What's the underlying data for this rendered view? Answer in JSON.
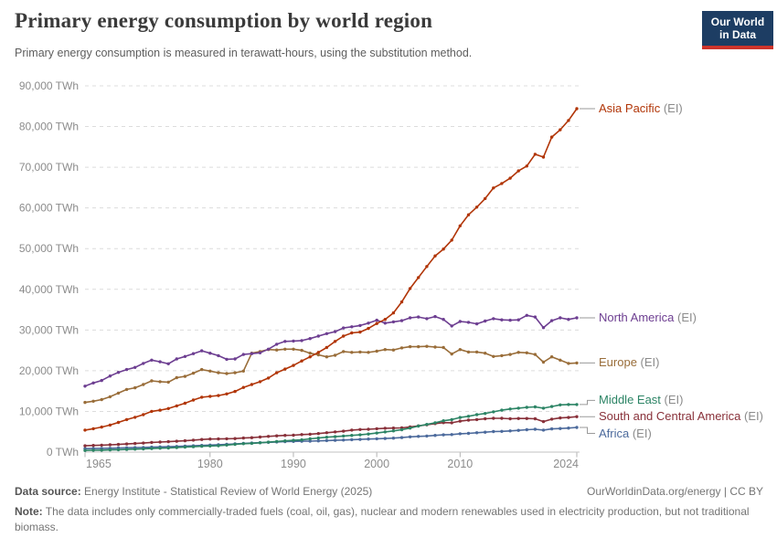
{
  "header": {
    "title": "Primary energy consumption by world region",
    "subtitle": "Primary energy consumption is measured in terawatt-hours, using the substitution method.",
    "logo": {
      "line1": "Our World",
      "line2": "in Data",
      "bg_color": "#1D3D63",
      "stripe_color": "#CE342B"
    }
  },
  "chart_data": {
    "type": "line",
    "title": "Primary energy consumption by world region",
    "unit": "TWh",
    "xlabel": "",
    "ylabel": "",
    "x_start": 1965,
    "x_end": 2024,
    "x_ticks": [
      1965,
      1980,
      1990,
      2000,
      2010,
      2024
    ],
    "ylim": [
      0,
      90000
    ],
    "y_ticks": [
      0,
      10000,
      20000,
      30000,
      40000,
      50000,
      60000,
      70000,
      80000,
      90000
    ],
    "y_tick_labels": [
      "0 TWh",
      "10,000 TWh",
      "20,000 TWh",
      "30,000 TWh",
      "40,000 TWh",
      "50,000 TWh",
      "60,000 TWh",
      "70,000 TWh",
      "80,000 TWh",
      "90,000 TWh"
    ],
    "grid": "horizontal-dashed",
    "legend_position": "right-of-line-ends",
    "series": [
      {
        "name": "Asia Pacific",
        "suffix": " (EI)",
        "color": "#B13507",
        "values": [
          5400,
          5750,
          6150,
          6650,
          7300,
          8000,
          8550,
          9200,
          10000,
          10300,
          10700,
          11350,
          12000,
          12800,
          13500,
          13700,
          13900,
          14300,
          14900,
          15900,
          16600,
          17300,
          18200,
          19500,
          20400,
          21300,
          22400,
          23400,
          24500,
          25700,
          27200,
          28500,
          29300,
          29500,
          30400,
          31600,
          32600,
          34200,
          36900,
          40200,
          42900,
          45600,
          48200,
          49900,
          52100,
          55600,
          58300,
          60200,
          62300,
          64900,
          66000,
          67300,
          69100,
          70300,
          73200,
          72500,
          77400,
          79200,
          81500,
          84400
        ]
      },
      {
        "name": "North America",
        "suffix": " (EI)",
        "color": "#6D3E91",
        "values": [
          16200,
          17000,
          17600,
          18700,
          19600,
          20300,
          20800,
          21800,
          22600,
          22200,
          21700,
          22900,
          23500,
          24200,
          24900,
          24300,
          23700,
          22800,
          22900,
          24000,
          24200,
          24400,
          25300,
          26500,
          27200,
          27300,
          27400,
          27900,
          28500,
          29100,
          29600,
          30500,
          30800,
          31100,
          31700,
          32400,
          31700,
          32000,
          32300,
          33000,
          33200,
          32800,
          33300,
          32600,
          31000,
          32100,
          31900,
          31500,
          32200,
          32800,
          32500,
          32400,
          32500,
          33600,
          33200,
          30600,
          32300,
          33000,
          32600,
          33000
        ]
      },
      {
        "name": "Europe",
        "suffix": " (EI)",
        "color": "#996D39",
        "values": [
          12200,
          12500,
          12900,
          13600,
          14500,
          15400,
          15800,
          16600,
          17500,
          17300,
          17200,
          18300,
          18600,
          19400,
          20300,
          19900,
          19500,
          19300,
          19500,
          19900,
          24300,
          24700,
          25200,
          25100,
          25300,
          25300,
          25000,
          24300,
          23900,
          23400,
          23800,
          24700,
          24500,
          24600,
          24500,
          24800,
          25200,
          25100,
          25600,
          25900,
          25900,
          26000,
          25800,
          25700,
          24100,
          25200,
          24600,
          24600,
          24300,
          23500,
          23700,
          24000,
          24500,
          24400,
          24000,
          22100,
          23400,
          22600,
          21800,
          21900
        ]
      },
      {
        "name": "Middle East",
        "suffix": " (EI)",
        "color": "#2C8465",
        "values": [
          400,
          440,
          480,
          530,
          580,
          640,
          710,
          790,
          880,
          960,
          1000,
          1120,
          1230,
          1320,
          1440,
          1500,
          1580,
          1720,
          1900,
          2060,
          2160,
          2300,
          2450,
          2600,
          2750,
          2900,
          3000,
          3250,
          3450,
          3650,
          3800,
          3950,
          4100,
          4250,
          4450,
          4700,
          4950,
          5200,
          5500,
          5900,
          6400,
          6800,
          7200,
          7700,
          8000,
          8500,
          8800,
          9200,
          9500,
          9900,
          10300,
          10600,
          10800,
          11000,
          11100,
          10800,
          11200,
          11600,
          11700,
          11700
        ]
      },
      {
        "name": "South and Central America",
        "suffix": " (EI)",
        "color": "#883039",
        "values": [
          1550,
          1630,
          1700,
          1800,
          1890,
          2000,
          2100,
          2220,
          2380,
          2480,
          2550,
          2680,
          2790,
          2950,
          3100,
          3200,
          3230,
          3280,
          3330,
          3450,
          3550,
          3700,
          3850,
          4000,
          4100,
          4150,
          4300,
          4400,
          4550,
          4750,
          4950,
          5150,
          5400,
          5550,
          5600,
          5750,
          5850,
          5900,
          5950,
          6200,
          6450,
          6700,
          7000,
          7250,
          7200,
          7600,
          7850,
          8000,
          8200,
          8300,
          8300,
          8200,
          8250,
          8250,
          8200,
          7500,
          8100,
          8400,
          8500,
          8700
        ]
      },
      {
        "name": "Africa",
        "suffix": " (EI)",
        "color": "#4C6A9C",
        "values": [
          850,
          880,
          910,
          950,
          1000,
          1050,
          1100,
          1150,
          1220,
          1280,
          1330,
          1400,
          1480,
          1540,
          1630,
          1720,
          1820,
          1910,
          2010,
          2130,
          2230,
          2310,
          2400,
          2500,
          2570,
          2620,
          2670,
          2700,
          2750,
          2820,
          2890,
          2960,
          3050,
          3120,
          3200,
          3270,
          3350,
          3430,
          3570,
          3750,
          3870,
          3950,
          4100,
          4250,
          4300,
          4500,
          4600,
          4750,
          4900,
          5050,
          5100,
          5200,
          5350,
          5500,
          5600,
          5400,
          5700,
          5800,
          5900,
          6050
        ]
      }
    ]
  },
  "footer": {
    "source_label": "Data source:",
    "source_text": "Energy Institute - Statistical Review of World Energy (2025)",
    "credit": "OurWorldinData.org/energy | CC BY",
    "note_label": "Note:",
    "note_text": "The data includes only commercially-traded fuels (coal, oil, gas), nuclear and modern renewables used in electricity production, but not traditional biomass."
  }
}
